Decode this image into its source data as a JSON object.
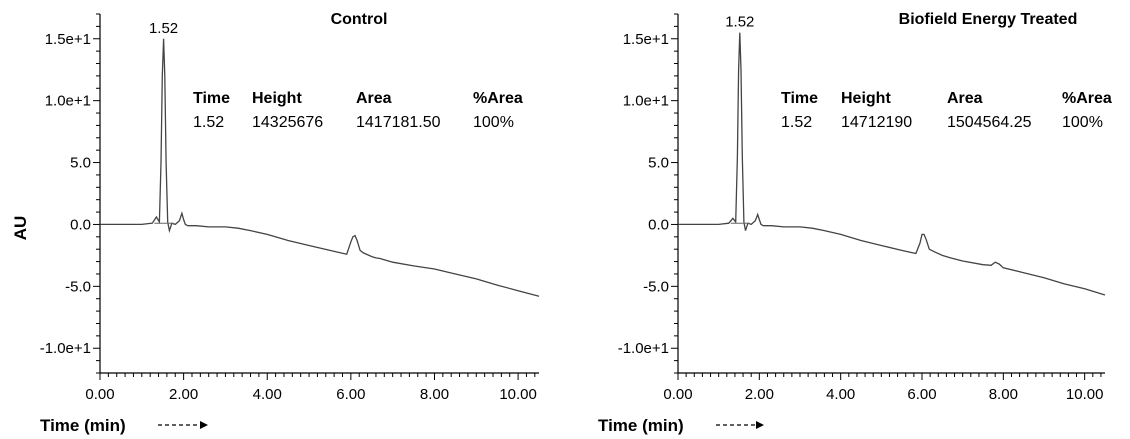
{
  "chart_data": [
    {
      "type": "line",
      "title": "Control",
      "ylabel": "AU",
      "xlabel": "Time (min)",
      "xlim": [
        0,
        10.5
      ],
      "ylim": [
        -12,
        17
      ],
      "x_ticks": [
        0,
        2,
        4,
        6,
        8,
        10
      ],
      "x_tick_labels": [
        "0.00",
        "2.00",
        "4.00",
        "6.00",
        "8.00",
        "10.00"
      ],
      "y_ticks": [
        15,
        10,
        5,
        0,
        -5,
        -10
      ],
      "y_tick_labels": [
        "1.5e+1",
        "1.0e+1",
        "5.0",
        "0.0",
        "-5.0",
        "-1.0e+1"
      ],
      "peak_label": {
        "x": 1.52,
        "y": 15,
        "text": "1.52"
      },
      "table": {
        "headers": [
          "Time",
          "Height",
          "Area",
          "%Area"
        ],
        "row": [
          "1.52",
          "14325676",
          "1417181.50",
          "100%"
        ]
      },
      "series": [
        {
          "x": [
            0.0,
            0.5,
            1.0,
            1.25,
            1.35,
            1.42,
            1.46,
            1.49,
            1.52,
            1.55,
            1.58,
            1.62,
            1.66,
            1.72,
            1.8,
            1.9,
            1.96,
            2.0,
            2.04,
            2.1,
            2.3,
            2.6,
            3.0,
            3.3,
            3.6,
            4.0,
            4.5,
            5.0,
            5.5,
            5.9,
            6.0,
            6.05,
            6.1,
            6.15,
            6.22,
            6.3,
            6.5,
            6.6,
            6.7,
            7.0,
            7.5,
            7.9,
            8.0,
            8.5,
            9.0,
            9.5,
            10.0,
            10.5
          ],
          "y": [
            0.0,
            0.0,
            0.0,
            0.1,
            0.6,
            0.2,
            5.0,
            12.0,
            15.0,
            12.0,
            5.0,
            0.2,
            -0.5,
            0.1,
            0.0,
            0.3,
            0.9,
            0.4,
            0.0,
            -0.1,
            -0.1,
            -0.2,
            -0.2,
            -0.3,
            -0.5,
            -0.8,
            -1.3,
            -1.7,
            -2.1,
            -2.4,
            -1.4,
            -1.0,
            -0.9,
            -1.3,
            -2.1,
            -2.3,
            -2.6,
            -2.7,
            -2.75,
            -3.05,
            -3.35,
            -3.55,
            -3.6,
            -4.0,
            -4.4,
            -4.9,
            -5.35,
            -5.8
          ]
        }
      ]
    },
    {
      "type": "line",
      "title": "Biofield Energy Treated",
      "ylabel": "",
      "xlabel": "Time (min)",
      "xlim": [
        0,
        10.5
      ],
      "ylim": [
        -12,
        17
      ],
      "x_ticks": [
        0,
        2,
        4,
        6,
        8,
        10
      ],
      "x_tick_labels": [
        "0.00",
        "2.00",
        "4.00",
        "6.00",
        "8.00",
        "10.00"
      ],
      "y_ticks": [
        15,
        10,
        5,
        0,
        -5,
        -10
      ],
      "y_tick_labels": [
        "1.5e+1",
        "1.0e+1",
        "5.0",
        "0.0",
        "-5.0",
        "-1.0e+1"
      ],
      "peak_label": {
        "x": 1.52,
        "y": 15.5,
        "text": "1.52"
      },
      "table": {
        "headers": [
          "Time",
          "Height",
          "Area",
          "%Area"
        ],
        "row": [
          "1.52",
          "14712190",
          "1504564.25",
          "100%"
        ]
      },
      "series": [
        {
          "x": [
            0.0,
            0.5,
            1.0,
            1.25,
            1.35,
            1.42,
            1.46,
            1.49,
            1.52,
            1.55,
            1.58,
            1.62,
            1.66,
            1.72,
            1.8,
            1.9,
            1.96,
            2.0,
            2.04,
            2.1,
            2.3,
            2.6,
            3.0,
            3.3,
            3.6,
            4.0,
            4.5,
            5.0,
            5.5,
            5.85,
            5.95,
            6.0,
            6.05,
            6.1,
            6.18,
            6.3,
            6.5,
            6.6,
            6.7,
            7.0,
            7.5,
            7.7,
            7.8,
            7.9,
            8.0,
            8.5,
            9.0,
            9.5,
            10.0,
            10.5
          ],
          "y": [
            0.0,
            0.0,
            0.0,
            0.1,
            0.5,
            0.2,
            5.5,
            12.5,
            15.5,
            12.5,
            5.5,
            0.2,
            -0.5,
            0.1,
            0.0,
            0.3,
            0.8,
            0.4,
            0.0,
            -0.1,
            -0.1,
            -0.2,
            -0.2,
            -0.3,
            -0.5,
            -0.8,
            -1.3,
            -1.7,
            -2.1,
            -2.35,
            -1.5,
            -0.8,
            -0.8,
            -1.2,
            -2.0,
            -2.2,
            -2.5,
            -2.6,
            -2.7,
            -2.95,
            -3.25,
            -3.3,
            -3.05,
            -3.2,
            -3.5,
            -3.9,
            -4.3,
            -4.8,
            -5.2,
            -5.7
          ]
        }
      ]
    }
  ]
}
